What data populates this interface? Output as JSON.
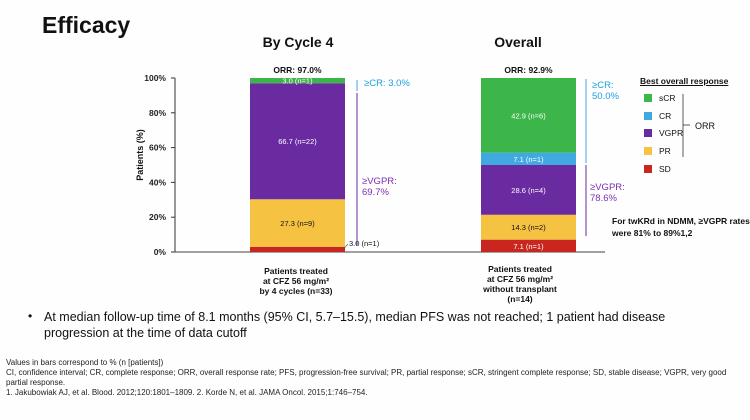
{
  "slide": {
    "title": "Efficacy",
    "y_axis_label": "Patients (%)",
    "bullet": "At median follow-up time of 8.1 months (95% CI, 5.7–15.5), median PFS was not reached; 1 patient had disease progression at the time of data cutoff",
    "footnotes": [
      "Values in bars correspond to % (n [patients])",
      "CI, confidence interval; CR, complete response; ORR, overall response rate; PFS, progression-free survival; PR, partial response; sCR, stringent complete response; SD, stable disease; VGPR, very good partial response.",
      "1. Jakubowiak AJ, et al. Blood. 2012;120:1801–1809. 2. Korde N, et al. JAMA Oncol. 2015;1:746–754."
    ],
    "twkrd_note": "For twKRd in NDMM, ≥VGPR rates were 81% to 89%1,2",
    "orr_brace_label": "ORR"
  },
  "colors": {
    "sCR": "#3cb54a",
    "CR": "#3fa9e0",
    "VGPR": "#6a2aa0",
    "PR": "#f5c242",
    "SD": "#c8261e"
  },
  "chart_data": {
    "type": "bar",
    "stacked": true,
    "ylabel": "Patients (%)",
    "ylim": [
      0,
      100
    ],
    "yticks": [
      "0%",
      "20%",
      "40%",
      "60%",
      "80%",
      "100%"
    ],
    "legend_title": "Best overall response",
    "legend": [
      "sCR",
      "CR",
      "VGPR",
      "PR",
      "SD"
    ],
    "panels": [
      {
        "title": "By Cycle 4",
        "category": "Patients treated at CFZ 56 mg/m² by 4 cycles (n=33)",
        "category_lines": [
          "Patients treated",
          "at CFZ 56 mg/m²",
          "by 4 cycles (n=33)"
        ],
        "orr_label": "ORR: 97.0%",
        "segments": [
          {
            "name": "SD",
            "value": 3.0,
            "label": "3.0 (n=1)",
            "label_outside": true
          },
          {
            "name": "PR",
            "value": 27.3,
            "label": "27.3 (n=9)"
          },
          {
            "name": "VGPR",
            "value": 66.7,
            "label": "66.7 (n=22)"
          },
          {
            "name": "sCR",
            "value": 3.0,
            "label": "3.0 (n=1)"
          }
        ],
        "annotations": [
          "≥CR: 3.0%",
          "≥VGPR: 69.7%"
        ]
      },
      {
        "title": "Overall",
        "category": "Patients treated at CFZ 56 mg/m² without transplant (n=14)",
        "category_lines": [
          "Patients treated",
          "at CFZ 56 mg/m²",
          "without transplant",
          "(n=14)"
        ],
        "orr_label": "ORR: 92.9%",
        "segments": [
          {
            "name": "SD",
            "value": 7.1,
            "label": "7.1 (n=1)"
          },
          {
            "name": "PR",
            "value": 14.3,
            "label": "14.3 (n=2)"
          },
          {
            "name": "VGPR",
            "value": 28.6,
            "label": "28.6 (n=4)"
          },
          {
            "name": "CR",
            "value": 7.1,
            "label": "7.1 (n=1)"
          },
          {
            "name": "sCR",
            "value": 42.9,
            "label": "42.9 (n=6)"
          }
        ],
        "annotations": [
          "≥CR: 50.0%",
          "≥VGPR: 78.6%"
        ]
      }
    ]
  }
}
